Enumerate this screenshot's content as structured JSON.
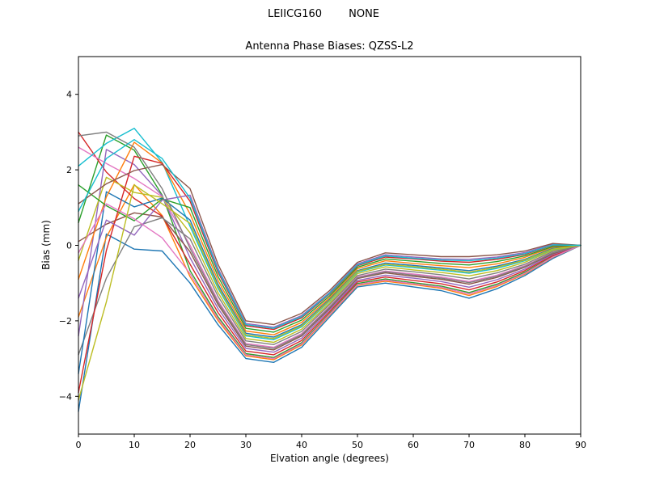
{
  "figure": {
    "background": "#ffffff",
    "suptitle": "LEIICG160        NONE"
  },
  "chart_data": {
    "type": "line",
    "title": "Antenna Phase Biases: QZSS-L2",
    "xlabel": "Elvation angle (degrees)",
    "ylabel": "Bias (mm)",
    "xlim": [
      0,
      90
    ],
    "ylim": [
      -5,
      5
    ],
    "xticks": [
      0,
      10,
      20,
      30,
      40,
      50,
      60,
      70,
      80,
      90
    ],
    "yticks": [
      -4,
      -2,
      0,
      2,
      4
    ],
    "grid": false,
    "legend": "none",
    "x": [
      0,
      5,
      10,
      15,
      20,
      25,
      30,
      35,
      40,
      45,
      50,
      55,
      60,
      65,
      70,
      75,
      80,
      85,
      90
    ],
    "series": [
      {
        "name": "s01",
        "color": "#1f77b4",
        "values": [
          -4.4,
          0.3,
          -0.1,
          -0.15,
          -1.0,
          -2.1,
          -3.0,
          -3.1,
          -2.7,
          -1.9,
          -1.1,
          -1.0,
          -1.1,
          -1.2,
          -1.4,
          -1.15,
          -0.8,
          -0.35,
          0.0
        ]
      },
      {
        "name": "s02",
        "color": "#ff7f0e",
        "values": [
          -1.9,
          0.21,
          1.61,
          0.79,
          -0.83,
          -1.99,
          -2.93,
          -3.03,
          -2.64,
          -1.85,
          -1.06,
          -0.95,
          -1.04,
          -1.14,
          -1.33,
          -1.09,
          -0.76,
          -0.32,
          0.0
        ]
      },
      {
        "name": "s03",
        "color": "#2ca02c",
        "values": [
          0.6,
          2.92,
          2.52,
          1.33,
          -0.67,
          -1.89,
          -2.87,
          -2.97,
          -2.58,
          -1.81,
          -1.01,
          -0.89,
          -0.99,
          -1.08,
          -1.25,
          -1.03,
          -0.71,
          -0.3,
          0.0
        ]
      },
      {
        "name": "s04",
        "color": "#d62728",
        "values": [
          3.0,
          1.94,
          1.24,
          0.77,
          -0.5,
          -1.78,
          -2.8,
          -2.9,
          -2.52,
          -1.76,
          -0.97,
          -0.84,
          -0.93,
          -1.02,
          -1.18,
          -0.97,
          -0.67,
          -0.27,
          0.0
        ]
      },
      {
        "name": "s05",
        "color": "#9467bd",
        "values": [
          -2.4,
          2.54,
          2.14,
          1.31,
          -0.33,
          -1.67,
          -2.73,
          -2.83,
          -2.46,
          -1.71,
          -0.93,
          -0.79,
          -0.87,
          -0.96,
          -1.11,
          -0.91,
          -0.63,
          -0.24,
          0.0
        ]
      },
      {
        "name": "s06",
        "color": "#8c564b",
        "values": [
          0.1,
          0.56,
          0.86,
          0.75,
          -0.17,
          -1.57,
          -2.67,
          -2.77,
          -2.4,
          -1.67,
          -0.88,
          -0.73,
          -0.82,
          -0.9,
          -1.03,
          -0.85,
          -0.58,
          -0.22,
          0.0
        ]
      },
      {
        "name": "s07",
        "color": "#e377c2",
        "values": [
          2.6,
          2.17,
          1.77,
          1.29,
          0.0,
          -1.46,
          -2.6,
          -2.7,
          -2.34,
          -1.62,
          -0.84,
          -0.68,
          -0.76,
          -0.84,
          -0.96,
          -0.79,
          -0.54,
          -0.19,
          0.0
        ]
      },
      {
        "name": "s08",
        "color": "#7f7f7f",
        "values": [
          -2.9,
          -0.87,
          0.49,
          0.73,
          0.17,
          -1.35,
          -2.53,
          -2.63,
          -2.28,
          -1.57,
          -0.8,
          -0.63,
          -0.7,
          -0.78,
          -0.89,
          -0.73,
          -0.5,
          -0.16,
          0.0
        ]
      },
      {
        "name": "s09",
        "color": "#bcbd22",
        "values": [
          -0.4,
          1.8,
          1.4,
          1.27,
          0.33,
          -1.25,
          -2.47,
          -2.57,
          -2.22,
          -1.53,
          -0.75,
          -0.57,
          -0.65,
          -0.72,
          -0.81,
          -0.67,
          -0.45,
          -0.13,
          0.0
        ]
      },
      {
        "name": "s10",
        "color": "#17becf",
        "values": [
          2.1,
          2.7,
          3.1,
          2.2,
          0.5,
          -1.14,
          -2.4,
          -2.5,
          -2.16,
          -1.48,
          -0.71,
          -0.52,
          -0.59,
          -0.66,
          -0.74,
          -0.61,
          -0.41,
          -0.11,
          0.0
        ]
      },
      {
        "name": "s11",
        "color": "#1f77b4",
        "values": [
          -3.4,
          1.42,
          1.02,
          1.25,
          0.67,
          -1.03,
          -2.33,
          -2.43,
          -2.1,
          -1.43,
          -0.67,
          -0.47,
          -0.53,
          -0.6,
          -0.67,
          -0.55,
          -0.37,
          -0.08,
          0.0
        ]
      },
      {
        "name": "s12",
        "color": "#ff7f0e",
        "values": [
          -0.9,
          1.28,
          2.73,
          2.18,
          0.83,
          -0.93,
          -2.27,
          -2.37,
          -2.04,
          -1.39,
          -0.62,
          -0.41,
          -0.48,
          -0.54,
          -0.59,
          -0.49,
          -0.32,
          -0.05,
          0.0
        ]
      },
      {
        "name": "s13",
        "color": "#2ca02c",
        "values": [
          1.6,
          1.05,
          0.65,
          1.23,
          1.0,
          -0.82,
          -2.2,
          -2.3,
          -1.98,
          -1.34,
          -0.58,
          -0.36,
          -0.42,
          -0.48,
          -0.52,
          -0.43,
          -0.28,
          -0.03,
          0.0
        ]
      },
      {
        "name": "s14",
        "color": "#d62728",
        "values": [
          -3.9,
          -0.14,
          2.36,
          2.17,
          1.17,
          -0.71,
          -2.13,
          -2.23,
          -1.92,
          -1.29,
          -0.54,
          -0.31,
          -0.36,
          -0.42,
          -0.45,
          -0.37,
          -0.24,
          0.0,
          0.0
        ]
      },
      {
        "name": "s15",
        "color": "#9467bd",
        "values": [
          -1.4,
          0.67,
          0.27,
          1.2,
          1.33,
          -0.61,
          -2.07,
          -2.17,
          -1.86,
          -1.25,
          -0.49,
          -0.25,
          -0.31,
          -0.36,
          -0.37,
          -0.31,
          -0.19,
          0.03,
          0.0
        ]
      },
      {
        "name": "s16",
        "color": "#8c564b",
        "values": [
          1.1,
          1.63,
          1.98,
          2.14,
          1.5,
          -0.5,
          -2.0,
          -2.1,
          -1.8,
          -1.2,
          -0.45,
          -0.2,
          -0.25,
          -0.3,
          -0.3,
          -0.25,
          -0.15,
          0.05,
          0.0
        ]
      },
      {
        "name": "s17",
        "color": "#e377c2",
        "values": [
          -0.2,
          1.1,
          0.7,
          0.2,
          -0.75,
          -1.94,
          -2.9,
          -3.0,
          -2.61,
          -1.83,
          -1.04,
          -0.92,
          -1.02,
          -1.11,
          -1.29,
          -1.06,
          -0.74,
          -0.31,
          0.0
        ]
      },
      {
        "name": "s18",
        "color": "#7f7f7f",
        "values": [
          2.9,
          3.0,
          2.6,
          1.5,
          -0.08,
          -1.51,
          -2.63,
          -2.73,
          -2.37,
          -1.64,
          -0.86,
          -0.7,
          -0.79,
          -0.87,
          -0.99,
          -0.82,
          -0.56,
          -0.2,
          0.0
        ]
      },
      {
        "name": "s19",
        "color": "#bcbd22",
        "values": [
          -4.1,
          -1.5,
          1.6,
          1.1,
          0.58,
          -1.09,
          -2.37,
          -2.47,
          -2.13,
          -1.46,
          -0.69,
          -0.5,
          -0.56,
          -0.63,
          -0.71,
          -0.58,
          -0.39,
          -0.1,
          0.0
        ]
      },
      {
        "name": "s20",
        "color": "#17becf",
        "values": [
          0.9,
          2.3,
          2.8,
          2.3,
          1.25,
          -0.66,
          -2.1,
          -2.2,
          -1.89,
          -1.27,
          -0.52,
          -0.28,
          -0.34,
          -0.39,
          -0.41,
          -0.34,
          -0.22,
          0.01,
          0.0
        ]
      }
    ]
  }
}
